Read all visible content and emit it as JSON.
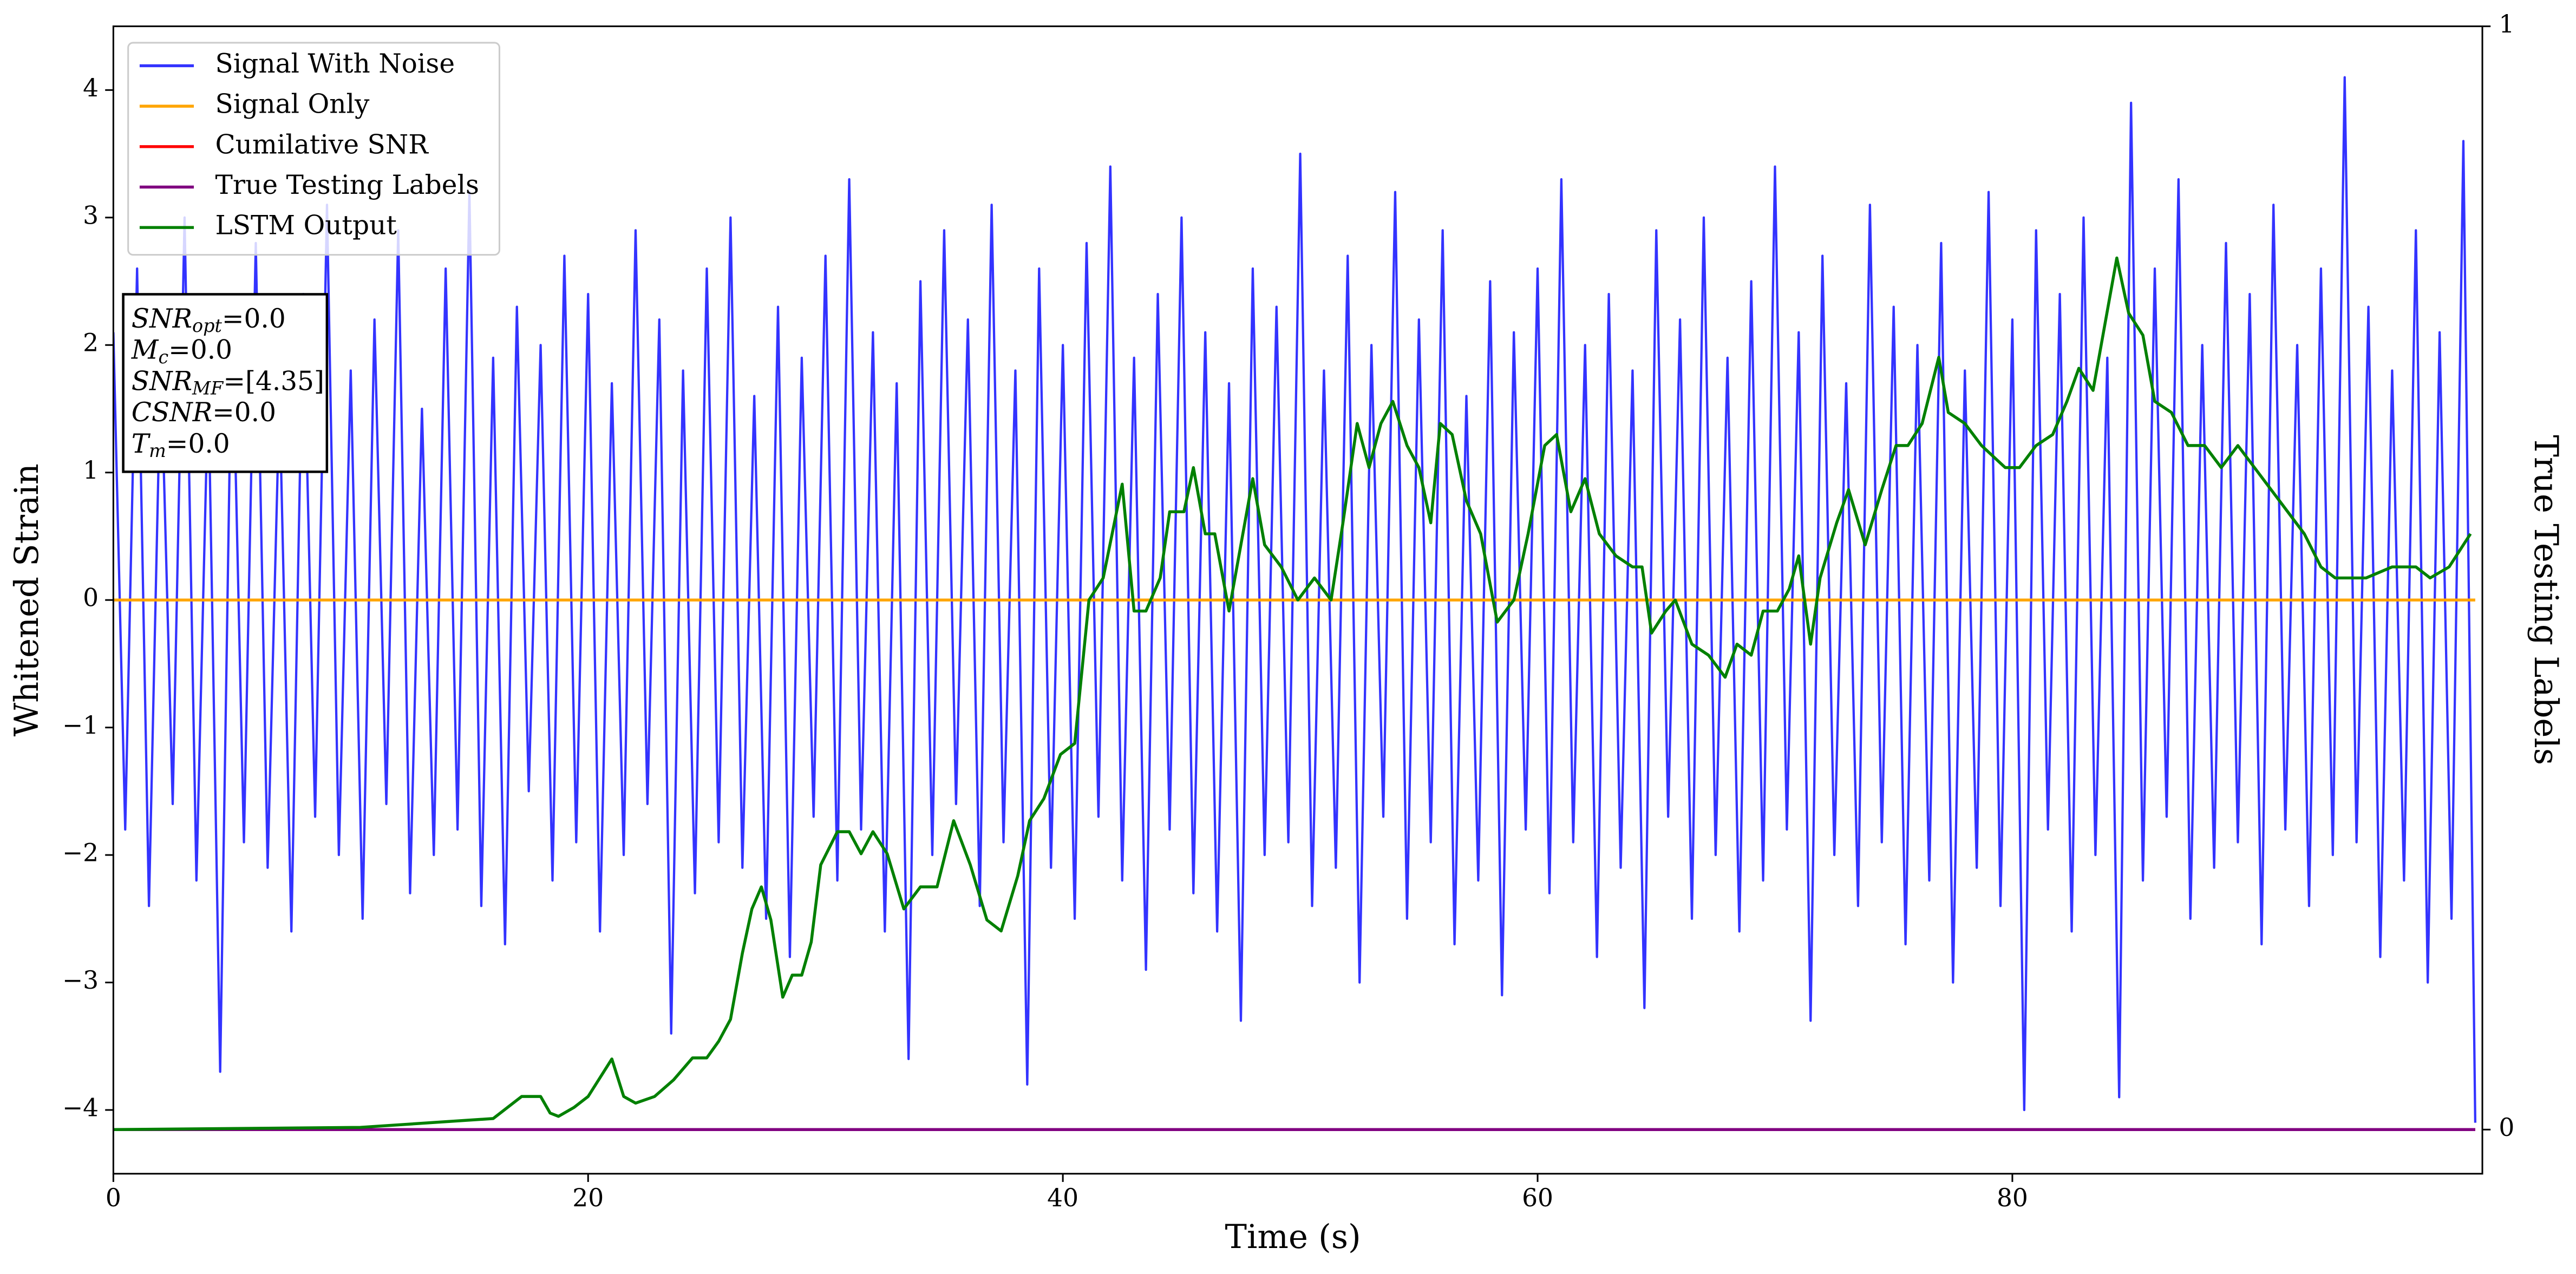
{
  "chart_data": {
    "type": "line",
    "xlabel": "Time (s)",
    "ylabel": "Whitened Strain",
    "y2label": "True Testing Labels",
    "xlim": [
      0,
      99.8
    ],
    "ylim": [
      -4.5,
      4.5
    ],
    "y2lim": [
      -0.04,
      1.0
    ],
    "xticks": [
      0,
      20,
      40,
      60,
      80
    ],
    "yticks": [
      {
        "value": -4,
        "label": "−4"
      },
      {
        "value": -3,
        "label": "−3"
      },
      {
        "value": -2,
        "label": "−2"
      },
      {
        "value": -1,
        "label": "−1"
      },
      0,
      1,
      2,
      3,
      4
    ],
    "y2ticks": [
      0,
      1
    ],
    "grid": false,
    "legend": "upper left",
    "annotation": [
      {
        "main": "SNR",
        "sub": "opt",
        "rest": "=0.0"
      },
      {
        "main": "M",
        "sub": "c",
        "rest": "=0.0"
      },
      {
        "main": "SNR",
        "sub": "MF",
        "rest": "=[4.35]"
      },
      {
        "main": "CSNR",
        "rest": "=0.0"
      },
      {
        "main": "T",
        "sub": "m",
        "rest": "=0.0"
      }
    ],
    "series": [
      {
        "name": "Signal With Noise",
        "color": "#3333ff",
        "axis": "y",
        "x": [
          0,
          0.5,
          1,
          1.5,
          2,
          2.5,
          3,
          3.5,
          4,
          4.5,
          5,
          5.5,
          6,
          6.5,
          7,
          7.5,
          8,
          8.5,
          9,
          9.5,
          10,
          10.5,
          11,
          11.5,
          12,
          12.5,
          13,
          13.5,
          14,
          14.5,
          15,
          15.5,
          16,
          16.5,
          17,
          17.5,
          18,
          18.5,
          19,
          19.5,
          20,
          20.5,
          21,
          21.5,
          22,
          22.5,
          23,
          23.5,
          24,
          24.5,
          25,
          25.5,
          26,
          26.5,
          27,
          27.5,
          28,
          28.5,
          29,
          29.5,
          30,
          30.5,
          31,
          31.5,
          32,
          32.5,
          33,
          33.5,
          34,
          34.5,
          35,
          35.5,
          36,
          36.5,
          37,
          37.5,
          38,
          38.5,
          39,
          39.5,
          40,
          40.5,
          41,
          41.5,
          42,
          42.5,
          43,
          43.5,
          44,
          44.5,
          45,
          45.5,
          46,
          46.5,
          47,
          47.5,
          48,
          48.5,
          49,
          49.5,
          50,
          50.5,
          51,
          51.5,
          52,
          52.5,
          53,
          53.5,
          54,
          54.5,
          55,
          55.5,
          56,
          56.5,
          57,
          57.5,
          58,
          58.5,
          59,
          59.5,
          60,
          60.5,
          61,
          61.5,
          62,
          62.5,
          63,
          63.5,
          64,
          64.5,
          65,
          65.5,
          66,
          66.5,
          67,
          67.5,
          68,
          68.5,
          69,
          69.5,
          70,
          70.5,
          71,
          71.5,
          72,
          72.5,
          73,
          73.5,
          74,
          74.5,
          75,
          75.5,
          76,
          76.5,
          77,
          77.5,
          78,
          78.5,
          79,
          79.5,
          80,
          80.5,
          81,
          81.5,
          82,
          82.5,
          83,
          83.5,
          84,
          84.5,
          85,
          85.5,
          86,
          86.5,
          87,
          87.5,
          88,
          88.5,
          89,
          89.5,
          90,
          90.5,
          91,
          91.5,
          92,
          92.5,
          93,
          93.5,
          94,
          94.5,
          95,
          95.5,
          96,
          96.5,
          97,
          97.5,
          98,
          98.5,
          99,
          99.5
        ],
        "values": [
          2.1,
          -1.8,
          2.6,
          -2.4,
          1.9,
          -1.6,
          3.0,
          -2.2,
          1.7,
          -3.7,
          2.3,
          -1.9,
          2.8,
          -2.1,
          1.6,
          -2.6,
          2.4,
          -1.7,
          3.1,
          -2.0,
          1.8,
          -2.5,
          2.2,
          -1.6,
          2.9,
          -2.3,
          1.5,
          -2.0,
          2.6,
          -1.8,
          3.2,
          -2.4,
          1.9,
          -2.7,
          2.3,
          -1.5,
          2.0,
          -2.2,
          2.7,
          -1.9,
          2.4,
          -2.6,
          1.7,
          -2.0,
          2.9,
          -1.6,
          2.2,
          -3.4,
          1.8,
          -2.3,
          2.6,
          -1.9,
          3.0,
          -2.1,
          1.6,
          -2.5,
          2.3,
          -2.8,
          1.9,
          -1.7,
          2.7,
          -2.2,
          3.3,
          -1.8,
          2.1,
          -2.6,
          1.7,
          -3.6,
          2.5,
          -2.0,
          2.9,
          -1.6,
          2.2,
          -2.4,
          3.1,
          -1.9,
          1.8,
          -3.8,
          2.6,
          -2.1,
          2.0,
          -2.5,
          2.8,
          -1.7,
          3.4,
          -2.2,
          1.9,
          -2.9,
          2.4,
          -1.8,
          3.0,
          -2.3,
          2.1,
          -2.6,
          1.7,
          -3.3,
          2.6,
          -2.0,
          2.3,
          -1.9,
          3.5,
          -2.4,
          1.8,
          -2.1,
          2.7,
          -3.0,
          2.0,
          -1.7,
          3.2,
          -2.5,
          2.2,
          -1.9,
          2.9,
          -2.7,
          1.6,
          -2.2,
          2.5,
          -3.1,
          2.1,
          -1.8,
          2.6,
          -2.3,
          3.3,
          -1.9,
          2.0,
          -2.8,
          2.4,
          -2.1,
          1.8,
          -3.2,
          2.9,
          -1.7,
          2.2,
          -2.5,
          3.0,
          -2.0,
          1.9,
          -2.6,
          2.5,
          -2.2,
          3.4,
          -1.8,
          2.1,
          -3.3,
          2.7,
          -2.0,
          1.7,
          -2.4,
          3.1,
          -1.9,
          2.3,
          -2.7,
          2.0,
          -2.2,
          2.8,
          -3.0,
          1.8,
          -2.1,
          3.2,
          -2.4,
          2.2,
          -4.0,
          2.9,
          -1.8,
          2.4,
          -2.6,
          3.0,
          -2.0,
          1.9,
          -3.9,
          3.9,
          -2.2,
          2.6,
          -1.7,
          3.3,
          -2.5,
          2.0,
          -2.1,
          2.8,
          -1.9,
          2.4,
          -2.7,
          3.1,
          -1.8,
          2.0,
          -2.4,
          2.6,
          -2.0,
          4.1,
          -1.9,
          2.3,
          -2.8,
          1.8,
          -2.2,
          2.9,
          -3.0,
          2.1,
          -2.5,
          3.6,
          -4.1
        ]
      },
      {
        "name": "Signal Only",
        "color": "#ffa500",
        "axis": "y",
        "x": [
          0,
          99.5
        ],
        "values": [
          0,
          0
        ]
      },
      {
        "name": "Cumilative SNR",
        "color": "#ff0000",
        "axis": "y2",
        "x": [
          0,
          99.5
        ],
        "values": [
          0,
          0
        ]
      },
      {
        "name": "True Testing Labels",
        "color": "#800080",
        "axis": "y2",
        "x": [
          0,
          99.5
        ],
        "values": [
          0,
          0
        ]
      },
      {
        "name": "LSTM Output",
        "color": "#008000",
        "axis": "y2",
        "x": [
          0,
          10.4,
          16,
          17.2,
          18,
          18.4,
          18.75,
          19.4,
          20,
          21,
          21.5,
          22,
          22.8,
          23.6,
          24.4,
          25,
          25.5,
          26,
          26.5,
          26.9,
          27.3,
          27.7,
          28.2,
          28.6,
          29,
          29.4,
          29.8,
          30.5,
          31,
          31.5,
          32,
          32.6,
          33.3,
          34,
          34.7,
          35.4,
          36.1,
          36.8,
          37.4,
          38.1,
          38.6,
          39.2,
          39.9,
          40.5,
          41.1,
          41.7,
          42.5,
          43,
          43.5,
          44.1,
          44.5,
          45.1,
          45.5,
          46,
          46.4,
          47,
          47.5,
          48,
          48.5,
          49.2,
          49.9,
          50.6,
          51.3,
          51.8,
          52.4,
          52.9,
          53.4,
          53.9,
          54.5,
          55,
          55.5,
          55.9,
          56.4,
          57,
          57.6,
          58.3,
          59,
          59.6,
          60.3,
          60.8,
          61.4,
          62,
          62.6,
          63.3,
          64,
          64.4,
          64.8,
          65.4,
          65.8,
          66.5,
          67.2,
          67.9,
          68.4,
          69,
          69.5,
          70.1,
          70.6,
          71,
          71.5,
          71.9,
          72.6,
          73.1,
          73.8,
          74.5,
          75.1,
          75.6,
          76.2,
          76.9,
          77.3,
          78,
          78.7,
          79.7,
          80.3,
          81,
          81.7,
          82.3,
          82.8,
          83.4,
          83.9,
          84.4,
          84.9,
          85.5,
          86,
          86.7,
          87.4,
          88.1,
          88.8,
          89.5,
          90.2,
          90.9,
          91.6,
          92.3,
          93,
          93.6,
          94.9,
          96,
          97,
          97.6,
          98.4,
          99,
          99.3
        ],
        "values": [
          0,
          0.002,
          0.01,
          0.03,
          0.03,
          0.015,
          0.012,
          0.02,
          0.03,
          0.064,
          0.03,
          0.024,
          0.03,
          0.045,
          0.065,
          0.065,
          0.08,
          0.1,
          0.16,
          0.2,
          0.22,
          0.19,
          0.12,
          0.14,
          0.14,
          0.17,
          0.24,
          0.27,
          0.27,
          0.25,
          0.27,
          0.25,
          0.2,
          0.22,
          0.22,
          0.28,
          0.24,
          0.19,
          0.18,
          0.23,
          0.28,
          0.3,
          0.34,
          0.35,
          0.48,
          0.5,
          0.585,
          0.47,
          0.47,
          0.5,
          0.56,
          0.56,
          0.6,
          0.54,
          0.54,
          0.47,
          0.53,
          0.59,
          0.53,
          0.51,
          0.48,
          0.5,
          0.48,
          0.55,
          0.64,
          0.6,
          0.64,
          0.66,
          0.62,
          0.6,
          0.55,
          0.64,
          0.63,
          0.57,
          0.54,
          0.46,
          0.48,
          0.54,
          0.62,
          0.63,
          0.56,
          0.59,
          0.54,
          0.52,
          0.51,
          0.51,
          0.45,
          0.47,
          0.48,
          0.44,
          0.43,
          0.41,
          0.44,
          0.43,
          0.47,
          0.47,
          0.49,
          0.52,
          0.44,
          0.5,
          0.55,
          0.58,
          0.53,
          0.58,
          0.62,
          0.62,
          0.64,
          0.7,
          0.65,
          0.64,
          0.62,
          0.6,
          0.6,
          0.62,
          0.63,
          0.66,
          0.69,
          0.67,
          0.73,
          0.79,
          0.74,
          0.72,
          0.66,
          0.65,
          0.62,
          0.62,
          0.6,
          0.62,
          0.6,
          0.58,
          0.56,
          0.54,
          0.51,
          0.5,
          0.5,
          0.51,
          0.51,
          0.5,
          0.51,
          0.53,
          0.54
        ]
      }
    ]
  }
}
